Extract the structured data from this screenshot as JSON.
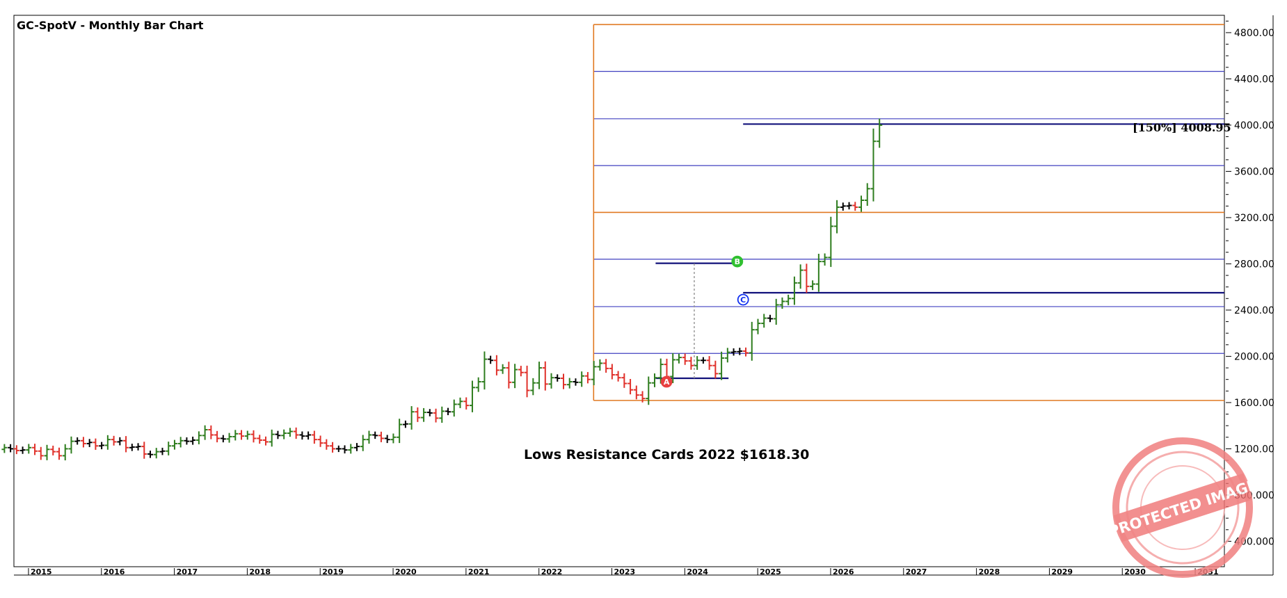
{
  "chart_data": {
    "type": "bar",
    "subtype": "ohlc-monthly",
    "title": "GC-SpotV - Monthly Bar Chart",
    "ylim": [
      180,
      4950
    ],
    "xlim": [
      2014.8,
      2031.4
    ],
    "y_ticks": [
      "4800.00",
      "4400.00",
      "4000.00",
      "3600.00",
      "3200.00",
      "2800.00",
      "2400.00",
      "2000.00",
      "1600.00",
      "1200.00",
      "800.000",
      "400.000"
    ],
    "x_ticks": [
      "2015",
      "2016",
      "2017",
      "2018",
      "2019",
      "2020",
      "2021",
      "2022",
      "2023",
      "2024",
      "2025",
      "2026",
      "2027",
      "2028",
      "2029",
      "2030",
      "2031"
    ],
    "grid": false,
    "legend": "none",
    "colors": {
      "up": "#2e7d1e",
      "down": "#e0302a",
      "neutral": "#000000",
      "fib_blue": "#4040c0",
      "fib_orange": "#e07820",
      "marker_line": "#10107a"
    },
    "closes": [
      1210,
      1200,
      1185,
      1190,
      1210,
      1180,
      1140,
      1195,
      1175,
      1140,
      1200,
      1265,
      1270,
      1245,
      1255,
      1225,
      1230,
      1280,
      1260,
      1270,
      1210,
      1215,
      1220,
      1155,
      1150,
      1175,
      1180,
      1225,
      1245,
      1270,
      1265,
      1275,
      1315,
      1365,
      1320,
      1290,
      1285,
      1305,
      1330,
      1310,
      1325,
      1290,
      1275,
      1260,
      1325,
      1315,
      1335,
      1350,
      1320,
      1310,
      1320,
      1280,
      1250,
      1225,
      1200,
      1200,
      1190,
      1210,
      1220,
      1280,
      1320,
      1315,
      1290,
      1280,
      1300,
      1410,
      1415,
      1520,
      1470,
      1515,
      1510,
      1465,
      1525,
      1520,
      1585,
      1610,
      1575,
      1730,
      1780,
      1975,
      1965,
      1880,
      1900,
      1775,
      1885,
      1860,
      1705,
      1770,
      1900,
      1760,
      1815,
      1810,
      1755,
      1780,
      1775,
      1830,
      1800,
      1910,
      1940,
      1895,
      1840,
      1815,
      1765,
      1710,
      1665,
      1635,
      1770,
      1815,
      1930,
      1825,
      1970,
      1990,
      1960,
      1920,
      1965,
      1965,
      1920,
      1850,
      1985,
      2035,
      2040,
      2045,
      2030,
      2230,
      2285,
      2330,
      2325,
      2445,
      2475,
      2500,
      2635,
      2745,
      2605,
      2625,
      2820,
      2855,
      3125,
      3290,
      3300,
      3305,
      3290,
      3350,
      3450,
      3860,
      4000
    ],
    "series": [
      {
        "name": "",
        "type": "ohlc",
        "values": "closes"
      }
    ],
    "points": [
      {
        "label": "A",
        "date": "2023.75",
        "value": 1780,
        "color": "#e84040"
      },
      {
        "label": "B",
        "date": "2024.72",
        "value": 2820,
        "color": "#30c030"
      },
      {
        "label": "C",
        "date": "2024.80",
        "value": 2490,
        "color": "#1030f0"
      }
    ],
    "fib_levels": {
      "start": "2022.75",
      "orange": [
        1618.3,
        3245,
        4870
      ],
      "blue": [
        2025,
        2430,
        2840,
        3650,
        4055,
        4465
      ]
    },
    "marker_lines": [
      {
        "from": "2023.6",
        "to": "2024.6",
        "value": 1810
      },
      {
        "from": "2023.6",
        "to": "2024.65",
        "value": 2805
      },
      {
        "from": "2024.8",
        "to": "2031.4",
        "value": 2550
      },
      {
        "from": "2024.8",
        "to": "2031.4",
        "value": 4008.95
      }
    ],
    "level_label": "[150%] 4008.95",
    "annotation": "Lows Resistance Cards 2022 $1618.30",
    "stamp": "PROTECTED IMAGE"
  }
}
